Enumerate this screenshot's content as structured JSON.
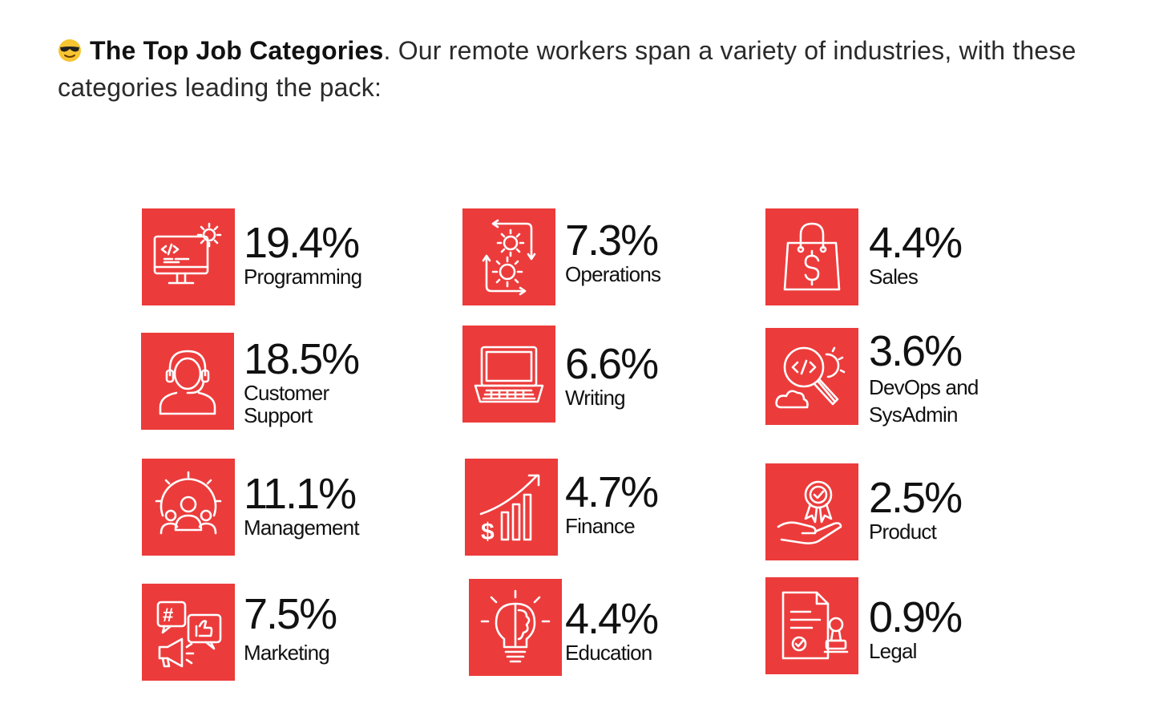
{
  "intro": {
    "emoji": "smiling-face-with-sunglasses",
    "title": "The Top Job Categories",
    "text": ". Our remote workers span a variety of industries, with these categories leading the pack:"
  },
  "accent": "#ec3b3b",
  "categories": [
    {
      "percent": "19.4%",
      "label": "Programming",
      "icon": "monitor-code-gear-icon"
    },
    {
      "percent": "18.5%",
      "label": "Customer Support",
      "icon": "headset-agent-icon"
    },
    {
      "percent": "11.1%",
      "label": "Management",
      "icon": "team-gear-icon"
    },
    {
      "percent": "7.5%",
      "label": "Marketing",
      "icon": "social-megaphone-icon"
    },
    {
      "percent": "7.3%",
      "label": "Operations",
      "icon": "gears-cycle-icon"
    },
    {
      "percent": "6.6%",
      "label": "Writing",
      "icon": "laptop-icon"
    },
    {
      "percent": "4.7%",
      "label": "Finance",
      "icon": "growth-chart-dollar-icon"
    },
    {
      "percent": "4.4%",
      "label": "Education",
      "icon": "lightbulb-brain-icon"
    },
    {
      "percent": "4.4%",
      "label": "Sales",
      "icon": "shopping-bag-dollar-icon"
    },
    {
      "percent": "3.6%",
      "label": "DevOps and SysAdmin",
      "icon": "code-search-cloud-gear-icon"
    },
    {
      "percent": "2.5%",
      "label": "Product",
      "icon": "hand-award-badge-icon"
    },
    {
      "percent": "0.9%",
      "label": "Legal",
      "icon": "document-stamp-icon"
    }
  ]
}
